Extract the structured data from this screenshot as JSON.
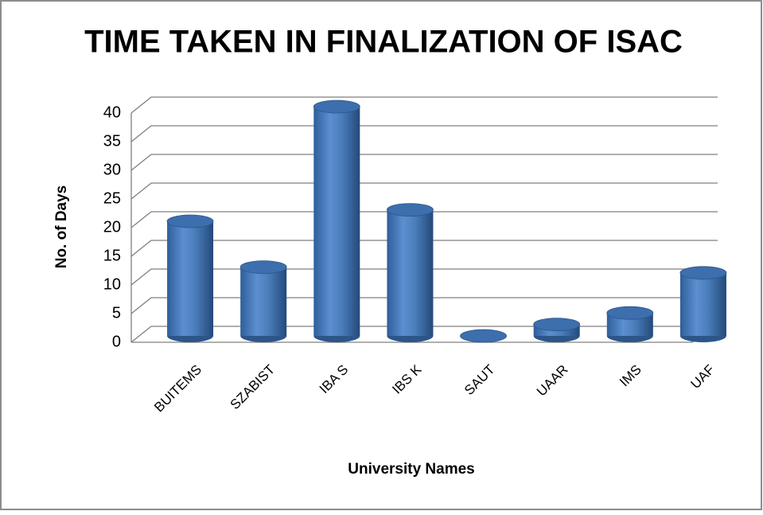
{
  "chart_data": {
    "type": "bar",
    "title": "TIME TAKEN IN FINALIZATION OF ISAC",
    "x_label": "University Names",
    "y_label": "No. of Days",
    "categories": [
      "BUITEMS",
      "SZABIST",
      "IBA S",
      "IBS K",
      "SAUT",
      "UAAR",
      "IMS",
      "UAF"
    ],
    "values": [
      20,
      12,
      40,
      22,
      0,
      2,
      4,
      11
    ],
    "color": "#4a7ebb",
    "ylim": [
      0,
      40
    ],
    "yticks": [
      0,
      5,
      10,
      15,
      20,
      25,
      30,
      35,
      40
    ],
    "grid": true
  }
}
